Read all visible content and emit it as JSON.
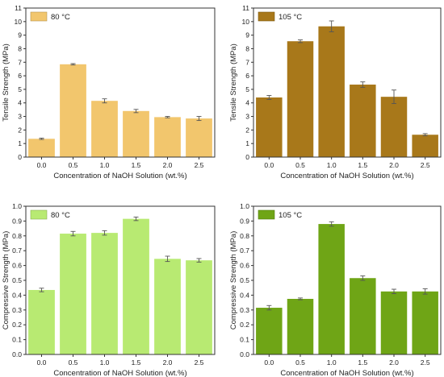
{
  "chart_data": [
    {
      "type": "bar",
      "title": "",
      "xlabel": "Concentration of NaOH Solution (wt.%)",
      "ylabel": "Tensile Strength (MPa)",
      "categories": [
        "0.0",
        "0.5",
        "1.0",
        "1.5",
        "2.0",
        "2.5"
      ],
      "ylim": [
        0,
        11
      ],
      "yticks": [
        "0",
        "1",
        "2",
        "3",
        "4",
        "5",
        "6",
        "7",
        "8",
        "9",
        "10",
        "11"
      ],
      "legend_position": "top-left",
      "color": "#F2C66D",
      "series": [
        {
          "name": "80 °C",
          "values": [
            1.35,
            6.85,
            4.15,
            3.4,
            2.95,
            2.85
          ],
          "errors": [
            0.05,
            0.05,
            0.15,
            0.12,
            0.05,
            0.15
          ]
        }
      ]
    },
    {
      "type": "bar",
      "title": "",
      "xlabel": "Concentration of NaOH Solution (wt.%)",
      "ylabel": "Tensile Strength (MPa)",
      "categories": [
        "0.0",
        "0.5",
        "1.0",
        "1.5",
        "2.0",
        "2.5"
      ],
      "ylim": [
        0,
        11
      ],
      "yticks": [
        "0",
        "1",
        "2",
        "3",
        "4",
        "5",
        "6",
        "7",
        "8",
        "9",
        "10",
        "11"
      ],
      "legend_position": "top-left",
      "color": "#A8781A",
      "series": [
        {
          "name": "105 °C",
          "values": [
            4.4,
            8.55,
            9.65,
            5.35,
            4.45,
            1.65
          ],
          "errors": [
            0.15,
            0.1,
            0.4,
            0.2,
            0.5,
            0.08
          ]
        }
      ]
    },
    {
      "type": "bar",
      "title": "",
      "xlabel": "Concentration of NaOH Solution (wt.%)",
      "ylabel": "Compressive Strength (MPa)",
      "categories": [
        "0.0",
        "0.5",
        "1.0",
        "1.5",
        "2.0",
        "2.5"
      ],
      "ylim": [
        0,
        1.0
      ],
      "yticks": [
        "0.0",
        "0.1",
        "0.2",
        "0.3",
        "0.4",
        "0.5",
        "0.6",
        "0.7",
        "0.8",
        "0.9",
        "1.0"
      ],
      "legend_position": "top-left",
      "color": "#B8EA72",
      "series": [
        {
          "name": "80 °C",
          "values": [
            0.435,
            0.815,
            0.82,
            0.915,
            0.645,
            0.635
          ],
          "errors": [
            0.012,
            0.015,
            0.015,
            0.012,
            0.018,
            0.012
          ]
        }
      ]
    },
    {
      "type": "bar",
      "title": "",
      "xlabel": "Concentration of NaOH Solution (wt.%)",
      "ylabel": "Compressive Strength (MPa)",
      "categories": [
        "0.0",
        "0.5",
        "1.0",
        "1.5",
        "2.0",
        "2.5"
      ],
      "ylim": [
        0,
        1.0
      ],
      "yticks": [
        "0.0",
        "0.1",
        "0.2",
        "0.3",
        "0.4",
        "0.5",
        "0.6",
        "0.7",
        "0.8",
        "0.9",
        "1.0"
      ],
      "legend_position": "top-left",
      "color": "#6FA516",
      "series": [
        {
          "name": "105 °C",
          "values": [
            0.315,
            0.375,
            0.88,
            0.515,
            0.425,
            0.425
          ],
          "errors": [
            0.015,
            0.006,
            0.015,
            0.015,
            0.015,
            0.018
          ]
        }
      ]
    }
  ]
}
